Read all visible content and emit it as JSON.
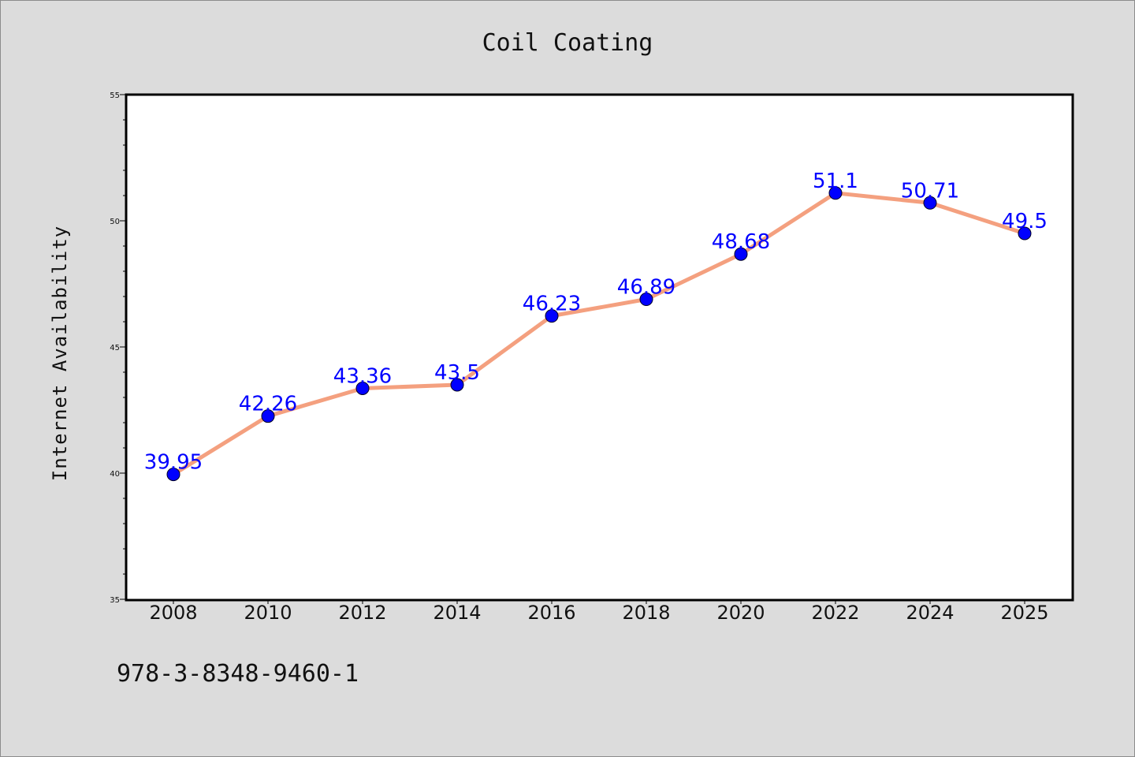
{
  "chart_data": {
    "type": "line",
    "title": "Coil Coating",
    "xlabel": "",
    "ylabel": "Internet Availability",
    "categories": [
      "2008",
      "2010",
      "2012",
      "2014",
      "2016",
      "2018",
      "2020",
      "2022",
      "2024",
      "2025"
    ],
    "series": [
      {
        "values": [
          39.95,
          42.26,
          43.36,
          43.5,
          46.23,
          46.89,
          48.68,
          51.1,
          50.71,
          49.5
        ],
        "data_labels": [
          "39.95",
          "42.26",
          "43.36",
          "43.5",
          "46.23",
          "46.89",
          "48.68",
          "51.1",
          "50.71",
          "49.5"
        ],
        "line_color": "#f4a07f",
        "marker_color": "#0000ff",
        "label_color": "#0000ff"
      }
    ],
    "ylim": [
      35,
      55
    ],
    "yticks": [
      "35",
      "40",
      "45",
      "50",
      "55"
    ],
    "grid": false,
    "legend": "none"
  },
  "footer": {
    "isbn": "978-3-8348-9460-1"
  },
  "colors": {
    "background": "#dcdcdc",
    "plot_background": "#ffffff",
    "axis": "#000000"
  }
}
